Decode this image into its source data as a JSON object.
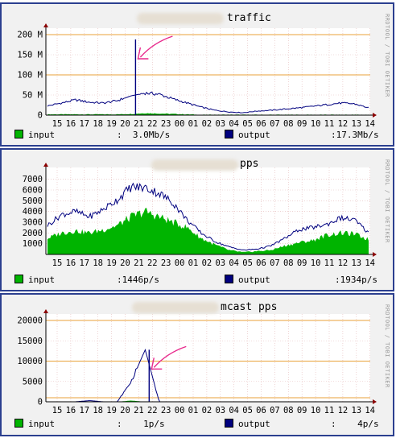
{
  "colors": {
    "frame": "#2b3f8f",
    "canvas": "#f1f1f1",
    "grid": "#e4b9b9",
    "axis": "#000000",
    "threshold": "#e8a23a",
    "input": "#00b400",
    "output": "#00007f",
    "annotation": "#e8288c"
  },
  "side_text": "RRDTOOL / TOBI OETIKER",
  "x_tick_labels": [
    "15",
    "16",
    "17",
    "18",
    "19",
    "20",
    "21",
    "22",
    "23",
    "00",
    "01",
    "02",
    "03",
    "04",
    "05",
    "06",
    "07",
    "08",
    "09",
    "10",
    "11",
    "12",
    "13",
    "14"
  ],
  "panels": [
    {
      "title": "traffic",
      "legend": {
        "input_label": "input",
        "input_value": ":  3.0Mb/s",
        "output_label": "output",
        "output_value": ":17.3Mb/s"
      }
    },
    {
      "title": "pps",
      "legend": {
        "input_label": "input",
        "input_value": ":1446p/s",
        "output_label": "output",
        "output_value": ":1934p/s"
      }
    },
    {
      "title": "mcast pps",
      "legend": {
        "input_label": "input",
        "input_value": ":    1p/s",
        "output_label": "output",
        "output_value": ":    4p/s"
      }
    }
  ],
  "chart_data": [
    {
      "type": "area",
      "title": "traffic",
      "y_tick_labels": [
        "0",
        "50 M",
        "100 M",
        "150 M",
        "200 M"
      ],
      "ylim": [
        0,
        200000000
      ],
      "grid": true,
      "thresholds": [
        100000000,
        200000000
      ],
      "x": [
        "15",
        "16",
        "17",
        "18",
        "19",
        "20",
        "21",
        "22",
        "23",
        "00",
        "01",
        "02",
        "03",
        "04",
        "05",
        "06",
        "07",
        "08",
        "09",
        "10",
        "11",
        "12",
        "13",
        "14"
      ],
      "series": [
        {
          "name": "input",
          "style": "area",
          "values": [
            2,
            2,
            2,
            2,
            2,
            2,
            3,
            5,
            4,
            3,
            2,
            1,
            1,
            1,
            1,
            1,
            1,
            1,
            1,
            1,
            1,
            1,
            1,
            1
          ]
        },
        {
          "name": "output",
          "style": "line",
          "values": [
            23,
            30,
            38,
            32,
            30,
            36,
            48,
            55,
            52,
            40,
            30,
            20,
            12,
            8,
            6,
            10,
            12,
            15,
            18,
            22,
            26,
            30,
            28,
            18
          ],
          "annotations": [
            {
              "x": "21",
              "value": 188
            }
          ]
        }
      ],
      "value_scale": 1000000
    },
    {
      "type": "area",
      "title": "pps",
      "y_tick_labels": [
        "1000",
        "2000",
        "3000",
        "4000",
        "5000",
        "6000",
        "7000"
      ],
      "ylim": [
        0,
        7500
      ],
      "grid": true,
      "thresholds": [],
      "x": [
        "15",
        "16",
        "17",
        "18",
        "19",
        "20",
        "21",
        "22",
        "23",
        "00",
        "01",
        "02",
        "03",
        "04",
        "05",
        "06",
        "07",
        "08",
        "09",
        "10",
        "11",
        "12",
        "13",
        "14"
      ],
      "series": [
        {
          "name": "input",
          "style": "area",
          "values": [
            1500,
            2000,
            2200,
            2000,
            2300,
            2700,
            3500,
            4000,
            3500,
            3000,
            2500,
            1500,
            900,
            400,
            200,
            300,
            400,
            800,
            1100,
            1300,
            1800,
            2000,
            1900,
            1400
          ]
        },
        {
          "name": "output",
          "style": "line",
          "values": [
            2700,
            3700,
            4000,
            3500,
            4200,
            5100,
            6300,
            6200,
            5700,
            4800,
            3200,
            2000,
            1200,
            700,
            400,
            500,
            800,
            1500,
            2300,
            2500,
            2800,
            3400,
            3200,
            2000
          ]
        }
      ]
    },
    {
      "type": "area",
      "title": "mcast pps",
      "y_tick_labels": [
        "0",
        "5000",
        "10000",
        "15000",
        "20000"
      ],
      "ylim": [
        0,
        20000
      ],
      "grid": true,
      "thresholds": [
        1000,
        10000,
        20000
      ],
      "x": [
        "15",
        "16",
        "17",
        "18",
        "19",
        "20",
        "21",
        "22",
        "23",
        "00",
        "01",
        "02",
        "03",
        "04",
        "05",
        "06",
        "07",
        "08",
        "09",
        "10",
        "11",
        "12",
        "13",
        "14"
      ],
      "series": [
        {
          "name": "input",
          "style": "area",
          "values": [
            0,
            0,
            0,
            0,
            0,
            0,
            300,
            0,
            0,
            0,
            0,
            0,
            0,
            0,
            0,
            0,
            0,
            0,
            0,
            0,
            0,
            0,
            0,
            0
          ]
        },
        {
          "name": "output",
          "style": "line",
          "values": [
            0,
            0,
            0,
            300,
            0,
            0,
            5000,
            12800,
            0,
            0,
            0,
            0,
            0,
            0,
            0,
            0,
            0,
            0,
            0,
            0,
            0,
            0,
            0,
            0
          ],
          "annotations": [
            {
              "x": "22",
              "value": 12800
            }
          ]
        }
      ]
    }
  ]
}
